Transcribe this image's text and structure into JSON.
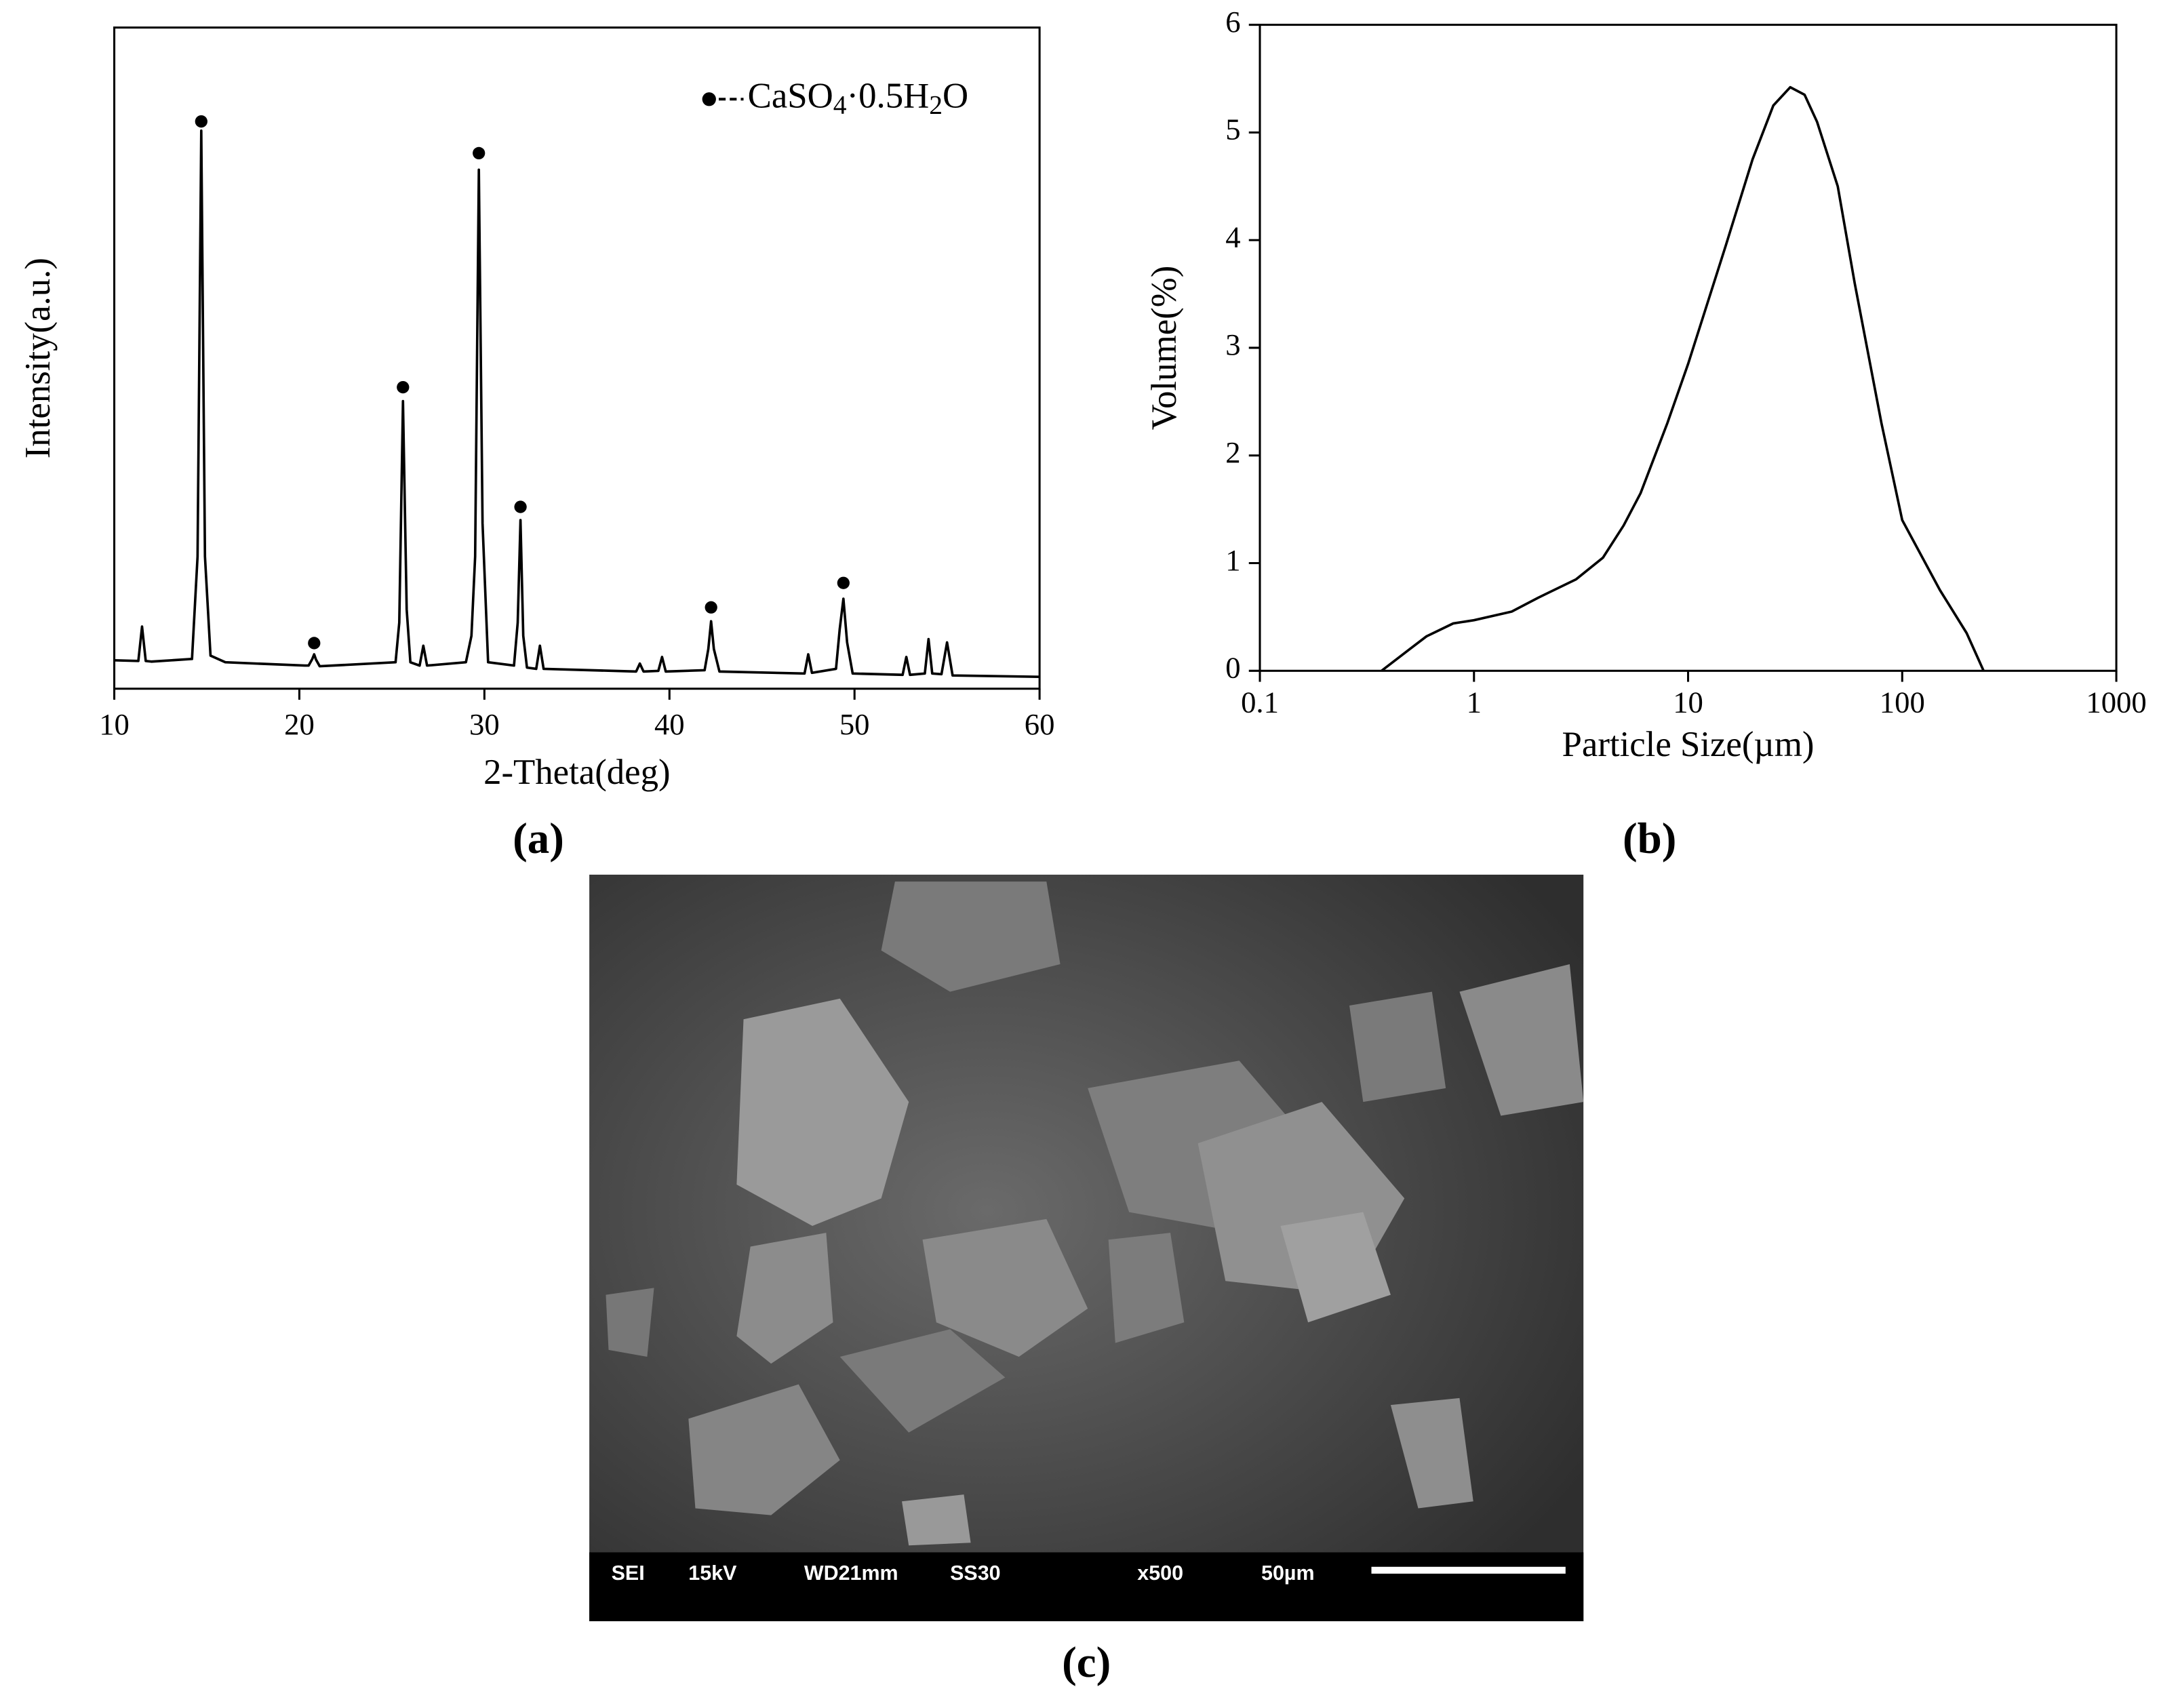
{
  "chart_data": [
    {
      "type": "line",
      "panel_label": "(a)",
      "x_label": "2-Theta(deg)",
      "y_label": "Intensity(a.u.)",
      "x": [
        10,
        11.3,
        11.5,
        11.7,
        12,
        14.2,
        14.5,
        14.7,
        14.9,
        15.2,
        16,
        20.3,
        20.5,
        20.7,
        20.8,
        20.9,
        21.1,
        25.2,
        25.4,
        25.6,
        25.8,
        26,
        26.5,
        26.7,
        26.9,
        29,
        29.3,
        29.5,
        29.7,
        29.9,
        30.2,
        31.6,
        31.8,
        31.95,
        32.1,
        32.3,
        32.8,
        33,
        33.2,
        38.2,
        38.4,
        38.6,
        39.4,
        39.6,
        39.8,
        41.9,
        42.1,
        42.25,
        42.4,
        42.7,
        47.3,
        47.5,
        47.7,
        49,
        49.2,
        49.4,
        49.6,
        49.9,
        52.6,
        52.8,
        53,
        53.8,
        54,
        54.2,
        54.7,
        55,
        55.3,
        60
      ],
      "series": [
        {
          "name": "CaSO4·0.5H2O",
          "color": "#000000",
          "values": [
            4.3,
            4.2,
            9.4,
            4.2,
            4.1,
            4.5,
            20,
            84.4,
            20,
            5,
            4,
            3.5,
            3.5,
            4.5,
            5.2,
            4.4,
            3.4,
            4,
            10,
            43.5,
            12,
            4,
            3.5,
            6.5,
            3.5,
            4,
            8,
            20,
            78.5,
            25,
            4,
            3.5,
            10,
            25.5,
            8,
            3.2,
            3,
            6.5,
            3,
            2.6,
            3.8,
            2.6,
            2.7,
            4.8,
            2.6,
            2.8,
            6,
            10.2,
            6,
            2.6,
            2.3,
            5.2,
            2.4,
            3,
            9,
            13.6,
            7,
            2.3,
            2.1,
            4.8,
            2.1,
            2.3,
            7.5,
            2.3,
            2.2,
            7,
            2,
            1.8
          ],
          "markers": {
            "x": [
              14.7,
              20.8,
              25.6,
              29.7,
              31.95,
              42.25,
              49.4
            ],
            "values": [
              85.8,
              6.9,
              45.6,
              81,
              27.5,
              12.3,
              16
            ]
          }
        }
      ],
      "xlim": [
        10,
        60
      ],
      "xticks": [
        10,
        20,
        30,
        40,
        50,
        60
      ],
      "ylim": [
        0,
        100
      ]
    },
    {
      "type": "line",
      "panel_label": "(b)",
      "x_label": "Particle Size(µm)",
      "y_label": "Volume(%)",
      "xscale": "log",
      "x": [
        0.37,
        0.5,
        0.6,
        0.8,
        1,
        1.5,
        2,
        3,
        4,
        5,
        6,
        8,
        10,
        15,
        20,
        25,
        30,
        35,
        40,
        50,
        60,
        80,
        100,
        150,
        200,
        240
      ],
      "series": [
        {
          "color": "#000000",
          "values": [
            0,
            0.2,
            0.32,
            0.44,
            0.47,
            0.55,
            0.68,
            0.85,
            1.05,
            1.35,
            1.65,
            2.3,
            2.85,
            3.95,
            4.75,
            5.25,
            5.42,
            5.35,
            5.1,
            4.5,
            3.6,
            2.3,
            1.4,
            0.75,
            0.35,
            0
          ]
        }
      ],
      "xlim": [
        0.1,
        1000
      ],
      "xticks": [
        0.1,
        1,
        10,
        100,
        1000
      ],
      "ylim": [
        0,
        6
      ],
      "yticks": [
        0,
        1,
        2,
        3,
        4,
        5,
        6
      ]
    }
  ],
  "image": {
    "panel_label": "(c)",
    "info_bar": [
      "SEI",
      "15kV",
      "WD21mm",
      "SS30",
      "x500",
      "50µm"
    ]
  }
}
